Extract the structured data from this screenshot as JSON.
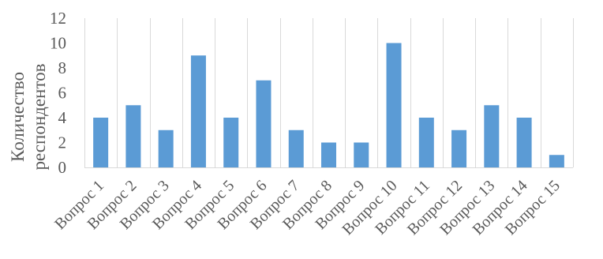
{
  "chart_data": {
    "type": "bar",
    "categories": [
      "Вопрос 1",
      "Вопрос 2",
      "Вопрос 3",
      "Вопрос 4",
      "Вопрос 5",
      "Вопрос 6",
      "Вопрос 7",
      "Вопрос 8",
      "Вопрос 9",
      "Вопрос 10",
      "Вопрос 11",
      "Вопрос 12",
      "Вопрос 13",
      "Вопрос 14",
      "Вопрос 15"
    ],
    "values": [
      4,
      5,
      3,
      9,
      4,
      7,
      3,
      2,
      2,
      10,
      4,
      3,
      5,
      4,
      1
    ],
    "title": "",
    "xlabel": "",
    "ylabel": [
      "Количество",
      "респондентов"
    ],
    "ylim": [
      0,
      12
    ],
    "yticks": [
      0,
      2,
      4,
      6,
      8,
      10,
      12
    ],
    "grid": "vertical category gridlines",
    "legend": "none",
    "bar_color": "#5B9BD5",
    "grid_color": "#D9D9D9",
    "text_color": "#595959"
  }
}
